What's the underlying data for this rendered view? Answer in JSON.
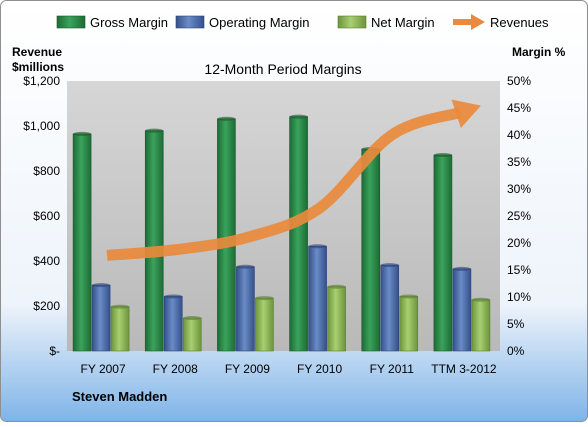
{
  "chart_data": {
    "type": "bar",
    "title": "12-Month Period Margins",
    "company": "Steven Madden",
    "left_axis_label": [
      "Revenue",
      "$millions"
    ],
    "right_axis_label": "Margin %",
    "categories": [
      "FY 2007",
      "FY 2008",
      "FY 2009",
      "FY 2010",
      "FY 2011",
      "TTM 3-2012"
    ],
    "left_ticks": [
      "$-",
      "$200",
      "$400",
      "$600",
      "$800",
      "$1,000",
      "$1,200"
    ],
    "right_ticks": [
      "0%",
      "5%",
      "10%",
      "15%",
      "20%",
      "25%",
      "30%",
      "35%",
      "40%",
      "45%",
      "50%"
    ],
    "left_ylim": [
      0,
      1200
    ],
    "right_ylim": [
      0,
      50
    ],
    "series": [
      {
        "name": "Gross Margin",
        "axis": "right",
        "color": "#2e8b4a",
        "values": [
          40.2,
          40.8,
          43.0,
          43.4,
          37.4,
          36.3
        ]
      },
      {
        "name": "Operating Margin",
        "axis": "right",
        "color": "#4f6fa8",
        "values": [
          12.2,
          10.1,
          15.6,
          19.4,
          15.9,
          15.2
        ]
      },
      {
        "name": "Net Margin",
        "axis": "right",
        "color": "#8db65a",
        "values": [
          8.2,
          6.1,
          9.8,
          11.9,
          10.1,
          9.5
        ]
      },
      {
        "name": "Revenues",
        "axis": "left",
        "color": "#e98a3c",
        "type": "line-arrow",
        "values": [
          425,
          450,
          505,
          635,
          960,
          1060
        ]
      }
    ],
    "legend_position": "top",
    "grid": false
  }
}
